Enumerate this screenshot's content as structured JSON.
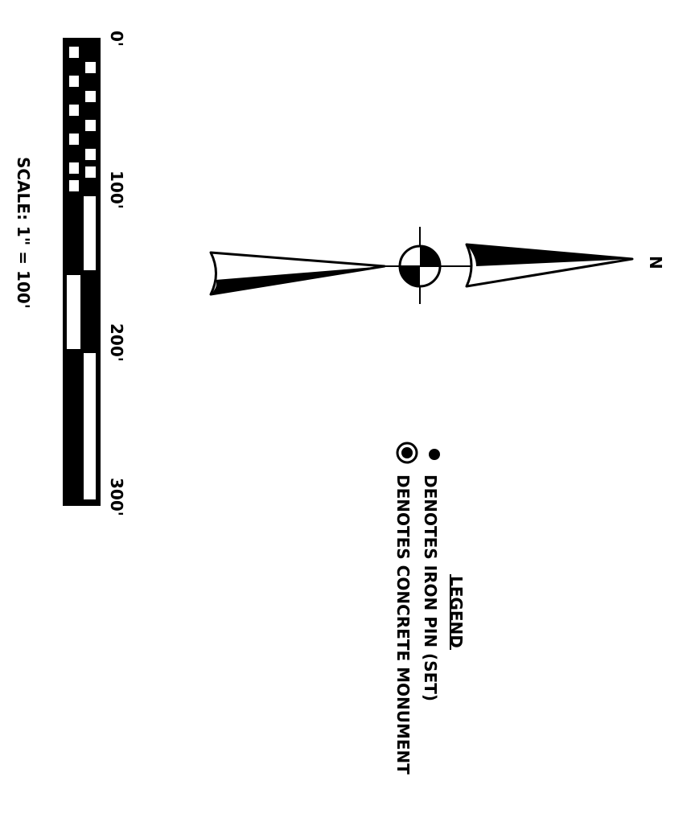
{
  "scale_bar": {
    "tick_labels": [
      "0'",
      "100'",
      "200'",
      "300'"
    ],
    "caption": "SCALE: 1\" = 100'"
  },
  "north_arrow": {
    "label": "N"
  },
  "legend": {
    "title": "LEGEND",
    "items": [
      {
        "symbol": "filled-dot-icon",
        "label": "DENOTES IRON PIN (SET)"
      },
      {
        "symbol": "ringed-dot-icon",
        "label": "DENOTES CONCRETE MONUMENT"
      }
    ]
  },
  "colors": {
    "ink": "#000000",
    "paper": "#ffffff"
  }
}
